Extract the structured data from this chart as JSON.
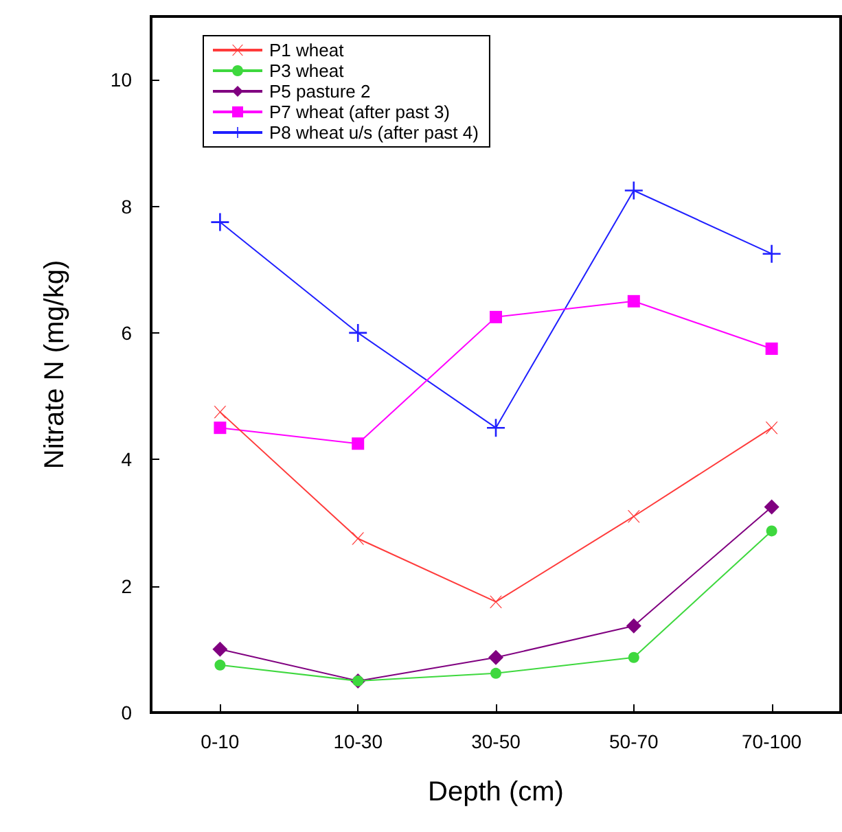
{
  "chart_data": {
    "type": "line",
    "xlabel": "Depth (cm)",
    "ylabel": "Nitrate N (mg/kg)",
    "categories": [
      "0-10",
      "10-30",
      "30-50",
      "50-70",
      "70-100"
    ],
    "series": [
      {
        "name": "P1 wheat",
        "color": "#ff3b3b",
        "marker": "x",
        "values": [
          4.75,
          2.75,
          1.75,
          3.1,
          4.5
        ]
      },
      {
        "name": "P3 wheat",
        "color": "#3ed83e",
        "marker": "circle",
        "values": [
          0.75,
          0.5,
          0.62,
          0.87,
          2.87
        ]
      },
      {
        "name": "P5 pasture 2",
        "color": "#800080",
        "marker": "diamond",
        "values": [
          1.0,
          0.5,
          0.87,
          1.37,
          3.25
        ]
      },
      {
        "name": "P7 wheat (after past 3)",
        "color": "#ff00ff",
        "marker": "square",
        "values": [
          4.5,
          4.25,
          6.25,
          6.5,
          5.75
        ]
      },
      {
        "name": "P8 wheat u/s (after past 4)",
        "color": "#1f1fff",
        "marker": "cross",
        "values": [
          7.75,
          6.0,
          4.5,
          8.25,
          7.25
        ]
      }
    ],
    "ylim": [
      0,
      11
    ],
    "yticks": [
      0,
      2,
      4,
      6,
      8,
      10
    ],
    "grid": false,
    "legend": "top left",
    "line_style": "solid"
  }
}
